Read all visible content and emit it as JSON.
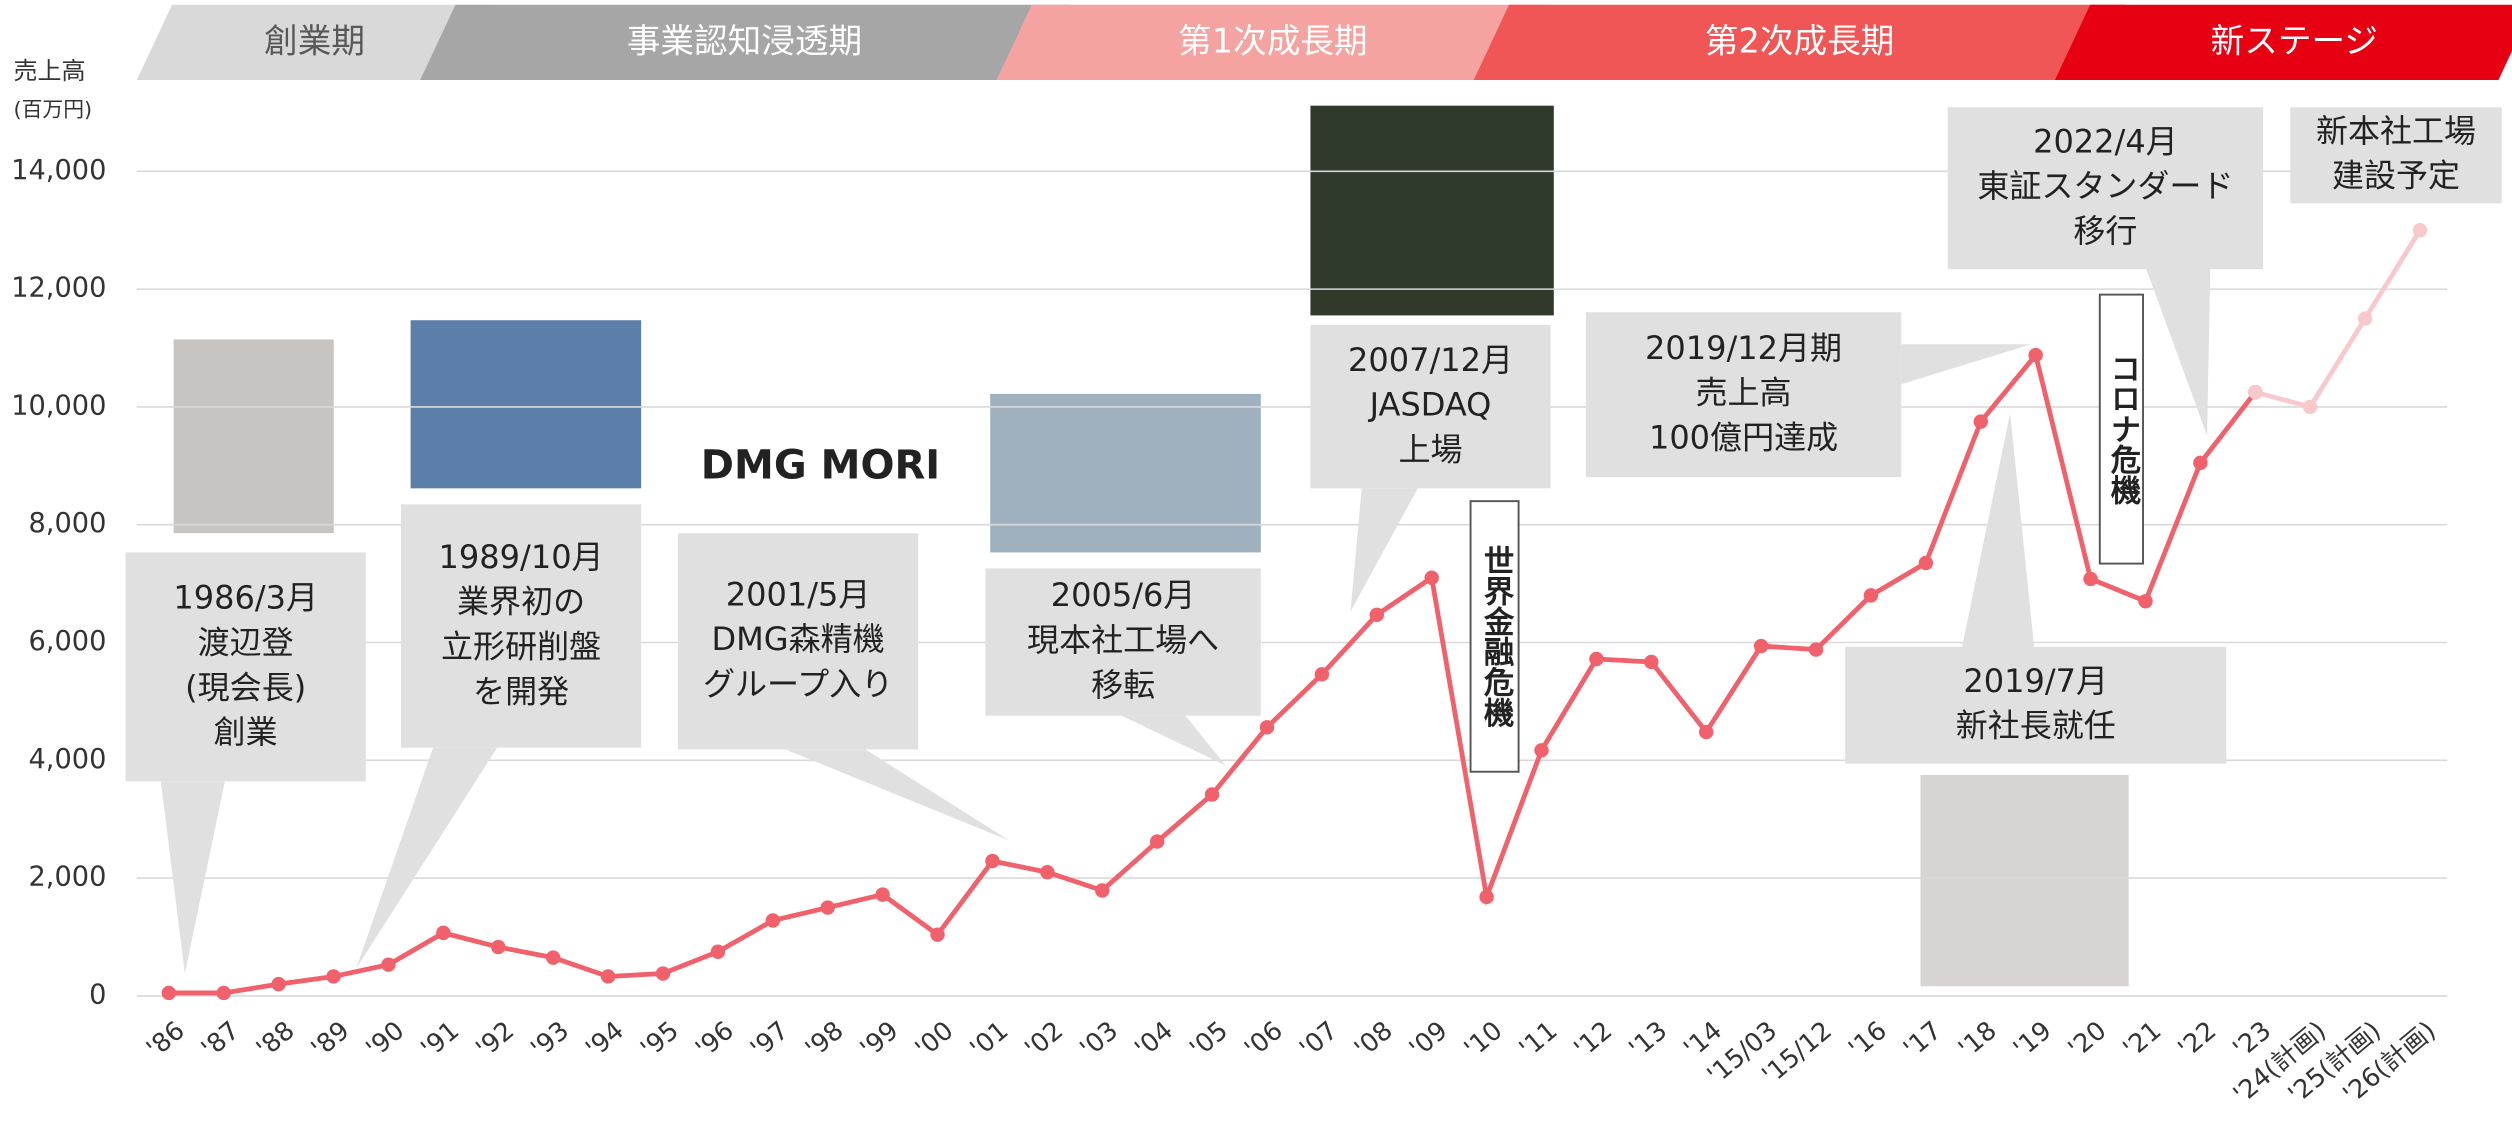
{
  "chart_data": {
    "type": "line",
    "y_axis_label": [
      "売上高",
      "(百万円)"
    ],
    "categories": [
      "'86",
      "'87",
      "'88",
      "'89",
      "'90",
      "'91",
      "'92",
      "'93",
      "'94",
      "'95",
      "'96",
      "'97",
      "'98",
      "'99",
      "'00",
      "'01",
      "'02",
      "'03",
      "'04",
      "'05",
      "'06",
      "'07",
      "'08",
      "'09",
      "'10",
      "'11",
      "'12",
      "'13",
      "'14",
      "'15/03",
      "'15/12",
      "'16",
      "'17",
      "'18",
      "'19",
      "'20",
      "'21",
      "'22",
      "'23",
      "'24(計画)",
      "'25(計画)",
      "'26(計画)"
    ],
    "series": [
      {
        "color": "#f0616b",
        "values": [
          50,
          50,
          200,
          330,
          530,
          1070,
          830,
          650,
          330,
          380,
          750,
          1280,
          1500,
          1720,
          1040,
          2290,
          2100,
          1790,
          2620,
          3420,
          4560,
          5460,
          6470,
          7100,
          1680,
          4170,
          5720,
          5670,
          4480,
          5940,
          5880,
          6800,
          7350,
          9750,
          10880,
          7080,
          6700,
          9050,
          10250,
          null,
          null,
          null
        ]
      },
      {
        "color": "#f8c9cc",
        "values": [
          null,
          null,
          null,
          null,
          null,
          null,
          null,
          null,
          null,
          null,
          null,
          null,
          null,
          null,
          null,
          null,
          null,
          null,
          null,
          null,
          null,
          null,
          null,
          null,
          null,
          null,
          null,
          null,
          null,
          null,
          null,
          null,
          null,
          null,
          null,
          null,
          null,
          null,
          10250,
          10000,
          11500,
          13000
        ]
      }
    ],
    "ylim": [
      0,
      14000
    ],
    "yticks": [
      0,
      {
        "value": 2000,
        "label": "2,000"
      },
      {
        "value": 4000,
        "label": "4,000"
      },
      {
        "value": 6000,
        "label": "6,000"
      },
      {
        "value": 8000,
        "label": "8,000"
      },
      {
        "value": 10000,
        "label": "10,000"
      },
      {
        "value": 12000,
        "label": "12,000"
      },
      {
        "value": 14000,
        "label": "14,000"
      }
    ],
    "grid": true,
    "phases": [
      {
        "label": "創業期",
        "color": "#d9d9d9",
        "text_color": "#595959"
      },
      {
        "label": "事業認知浸透期",
        "color": "#a6a6a6",
        "text_color": "#ffffff"
      },
      {
        "label": "第1次成長期",
        "color": "#f5a3a0",
        "text_color": "#ffffff"
      },
      {
        "label": "第2次成長期",
        "color": "#f05656",
        "text_color": "#ffffff"
      },
      {
        "label": "新ステージ",
        "color": "#e60012",
        "text_color": "#ffffff"
      }
    ],
    "annotations": [
      [
        "1986/3月",
        "渡辺登",
        "(現会長)",
        "創業"
      ],
      [
        "1989/10月",
        "業界初の",
        "立形研削盤",
        "を開発"
      ],
      [
        "2001/5月",
        "DMG森精機",
        "グループ入り"
      ],
      [
        "2005/6月",
        "現本社工場へ",
        "移転"
      ],
      [
        "2007/12月",
        "JASDAQ",
        "上場"
      ],
      [
        "2019/12月期",
        "売上高",
        "100億円達成"
      ],
      [
        "2022/4月",
        "東証スタンダード",
        "移行"
      ],
      [
        "2019/7月",
        "新社長就任"
      ],
      [
        "新本社工場",
        "建設予定"
      ]
    ],
    "crises": [
      "世界金融危機",
      "コロナ危機"
    ],
    "logo_text": "DMG MORI"
  }
}
